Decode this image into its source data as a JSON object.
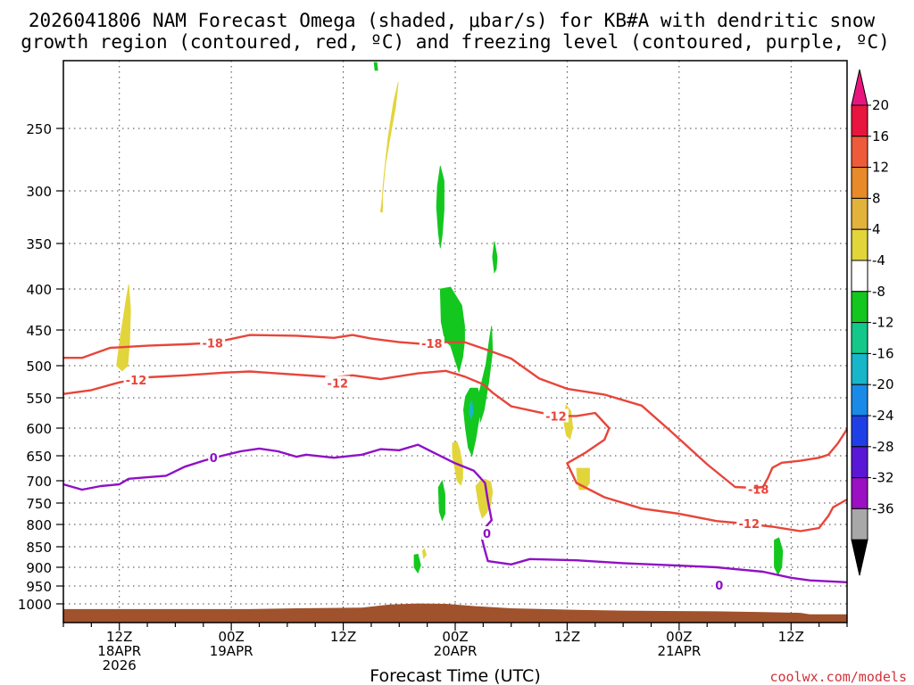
{
  "chart_data": {
    "type": "heatmap",
    "title_lines": [
      "2026041806 NAM Forecast Omega (shaded, μbar/s) for KB#A with dendritic snow",
      "growth region (contoured, red, ºC) and freezing level (contoured, purple, ºC)"
    ],
    "xlabel": "Forecast Time (UTC)",
    "ylabel": "",
    "x_unit": "hours since 2026041806",
    "xlim": [
      0,
      84
    ],
    "ylim": [
      1025,
      200
    ],
    "y_ticks": [
      250,
      300,
      350,
      400,
      450,
      500,
      550,
      600,
      650,
      700,
      750,
      800,
      850,
      900,
      950,
      1000
    ],
    "x_ticks": [
      {
        "x": 6,
        "lines": [
          "12Z",
          "18APR",
          "2026"
        ]
      },
      {
        "x": 18,
        "lines": [
          "00Z",
          "19APR"
        ]
      },
      {
        "x": 30,
        "lines": [
          "12Z"
        ]
      },
      {
        "x": 42,
        "lines": [
          "00Z",
          "20APR"
        ]
      },
      {
        "x": 54,
        "lines": [
          "12Z"
        ]
      },
      {
        "x": 66,
        "lines": [
          "00Z",
          "21APR"
        ]
      },
      {
        "x": 78,
        "lines": [
          "12Z"
        ]
      }
    ],
    "grid": true,
    "colorbar": {
      "labels": [
        "20",
        "16",
        "12",
        "8",
        "4",
        "-4",
        "-8",
        "-12",
        "-16",
        "-20",
        "-24",
        "-28",
        "-32",
        "-36"
      ],
      "colors": [
        "#e8153f",
        "#ee5b3b",
        "#e88a2a",
        "#e3b23b",
        "#e2d53b",
        "#ffffff",
        "#13c71f",
        "#14c88a",
        "#18b6c9",
        "#1a8ae8",
        "#1f3fe6",
        "#5a18d6",
        "#9a10c2",
        "#a8a8a8"
      ],
      "top_color": "#e8157f",
      "bottom_color": "#000000"
    },
    "contours": [
      {
        "name": "-18",
        "color": "#e8453a",
        "labels": [
          {
            "x": 16.0,
            "y": 468
          },
          {
            "x": 39.5,
            "y": 469
          },
          {
            "x": 74.5,
            "y": 719
          }
        ],
        "points": [
          [
            0,
            489
          ],
          [
            2,
            489
          ],
          [
            5,
            475
          ],
          [
            9,
            472
          ],
          [
            13,
            470
          ],
          [
            16,
            468
          ],
          [
            20,
            457
          ],
          [
            25,
            458
          ],
          [
            29,
            461
          ],
          [
            31,
            457
          ],
          [
            33,
            462
          ],
          [
            36,
            467
          ],
          [
            39,
            470
          ],
          [
            41,
            467
          ],
          [
            43,
            467
          ],
          [
            45,
            476
          ],
          [
            48,
            490
          ],
          [
            51,
            520
          ],
          [
            54,
            536
          ],
          [
            58,
            545
          ],
          [
            62,
            563
          ],
          [
            65,
            604
          ],
          [
            69,
            667
          ],
          [
            72,
            714
          ],
          [
            74,
            716
          ],
          [
            75,
            718
          ]
        ]
      },
      {
        "name": "-18 (right)",
        "color": "#e8453a",
        "labels": [],
        "points": [
          [
            74,
            716
          ],
          [
            75,
            714
          ],
          [
            75.5,
            695
          ],
          [
            76,
            674
          ],
          [
            77,
            664
          ],
          [
            79,
            660
          ],
          [
            81,
            654
          ],
          [
            82,
            648
          ],
          [
            83,
            628
          ],
          [
            84,
            602
          ]
        ]
      },
      {
        "name": "-12",
        "color": "#e8453a",
        "labels": [
          {
            "x": 7.8,
            "y": 522
          },
          {
            "x": 29.4,
            "y": 527
          },
          {
            "x": 52.8,
            "y": 580
          },
          {
            "x": 73.5,
            "y": 798
          }
        ],
        "points": [
          [
            0,
            544
          ],
          [
            3,
            538
          ],
          [
            6,
            526
          ],
          [
            9,
            518
          ],
          [
            13,
            515
          ],
          [
            17,
            511
          ],
          [
            20,
            509
          ],
          [
            22,
            511
          ],
          [
            27,
            516
          ],
          [
            29,
            518
          ],
          [
            31,
            515
          ],
          [
            34,
            521
          ],
          [
            38,
            512
          ],
          [
            41,
            508
          ],
          [
            43,
            517
          ],
          [
            45,
            529
          ],
          [
            46,
            542
          ],
          [
            48,
            564
          ],
          [
            51,
            574
          ],
          [
            53,
            580
          ],
          [
            55,
            580
          ],
          [
            57,
            575
          ],
          [
            58.5,
            600
          ],
          [
            58,
            621
          ],
          [
            56,
            644
          ],
          [
            54,
            665
          ],
          [
            55,
            705
          ],
          [
            58,
            737
          ],
          [
            62,
            763
          ],
          [
            66,
            775
          ],
          [
            70,
            792
          ],
          [
            73,
            798
          ],
          [
            76,
            805
          ],
          [
            79,
            815
          ],
          [
            81,
            808
          ],
          [
            82,
            780
          ],
          [
            82.5,
            760
          ],
          [
            84,
            742
          ]
        ]
      },
      {
        "name": "0",
        "color": "#8f10c6",
        "labels": [
          {
            "x": 16.1,
            "y": 654
          },
          {
            "x": 45.4,
            "y": 820
          },
          {
            "x": 70.3,
            "y": 948
          }
        ],
        "points": [
          [
            0,
            708
          ],
          [
            2,
            720
          ],
          [
            4,
            712
          ],
          [
            6,
            708
          ],
          [
            7,
            696
          ],
          [
            9,
            693
          ],
          [
            11,
            690
          ],
          [
            13,
            672
          ],
          [
            15,
            660
          ],
          [
            17,
            650
          ],
          [
            19,
            642
          ],
          [
            21,
            637
          ],
          [
            23,
            642
          ],
          [
            25,
            652
          ],
          [
            26,
            648
          ],
          [
            29,
            654
          ],
          [
            32,
            648
          ],
          [
            34,
            638
          ],
          [
            36,
            640
          ],
          [
            38,
            630
          ],
          [
            40,
            647
          ],
          [
            42,
            665
          ],
          [
            44,
            680
          ],
          [
            45.2,
            705
          ],
          [
            45.5,
            745
          ],
          [
            45.9,
            790
          ],
          [
            45,
            812
          ],
          [
            44.9,
            835
          ],
          [
            45.2,
            860
          ],
          [
            45.5,
            885
          ],
          [
            48,
            893
          ],
          [
            50,
            880
          ],
          [
            55,
            883
          ],
          [
            60,
            890
          ],
          [
            65,
            895
          ],
          [
            70,
            900
          ],
          [
            72,
            905
          ],
          [
            75,
            912
          ],
          [
            78,
            928
          ],
          [
            80,
            935
          ],
          [
            84,
            940
          ]
        ]
      }
    ],
    "omega_patches": [
      {
        "value": -6,
        "color": "#13c71f",
        "points": [
          [
            33.3,
            190
          ],
          [
            33.6,
            190
          ],
          [
            33.7,
            206
          ],
          [
            33.4,
            206
          ]
        ]
      },
      {
        "value": 6,
        "color": "#e2d53b",
        "points": [
          [
            34.0,
            320
          ],
          [
            34.2,
            305
          ],
          [
            34.5,
            280
          ],
          [
            35.0,
            258
          ],
          [
            35.6,
            234
          ],
          [
            35.9,
            215
          ],
          [
            35.4,
            230
          ],
          [
            34.8,
            258
          ],
          [
            34.4,
            285
          ],
          [
            34.2,
            302
          ],
          [
            34.2,
            320
          ]
        ]
      },
      {
        "value": -6,
        "color": "#13c71f",
        "points": [
          [
            40.1,
            296
          ],
          [
            40.4,
            280
          ],
          [
            40.8,
            292
          ],
          [
            40.8,
            318
          ],
          [
            40.6,
            342
          ],
          [
            40.4,
            355
          ],
          [
            40.2,
            340
          ],
          [
            40.0,
            315
          ]
        ]
      },
      {
        "value": -6,
        "color": "#13c71f",
        "points": [
          [
            46.0,
            365
          ],
          [
            46.2,
            348
          ],
          [
            46.5,
            365
          ],
          [
            46.4,
            378
          ],
          [
            46.2,
            382
          ]
        ]
      },
      {
        "value": 6,
        "color": "#e2d53b",
        "points": [
          [
            5.7,
            500
          ],
          [
            6.1,
            460
          ],
          [
            6.7,
            415
          ],
          [
            7.0,
            395
          ],
          [
            7.2,
            425
          ],
          [
            7.1,
            468
          ],
          [
            6.9,
            500
          ],
          [
            6.3,
            508
          ]
        ]
      },
      {
        "value": -7,
        "color": "#13c71f",
        "points": [
          [
            40.4,
            400
          ],
          [
            41.5,
            398
          ],
          [
            42.7,
            420
          ],
          [
            43.0,
            445
          ],
          [
            43.0,
            465
          ],
          [
            42.8,
            488
          ],
          [
            42.4,
            510
          ],
          [
            42.0,
            493
          ],
          [
            41.5,
            472
          ],
          [
            40.9,
            465
          ],
          [
            40.5,
            440
          ]
        ]
      },
      {
        "value": -7,
        "color": "#13c71f",
        "points": [
          [
            43.1,
            548
          ],
          [
            43.6,
            535
          ],
          [
            44.4,
            535
          ],
          [
            44.8,
            555
          ],
          [
            44.6,
            580
          ],
          [
            44.2,
            620
          ],
          [
            43.8,
            650
          ],
          [
            43.4,
            635
          ],
          [
            43.1,
            600
          ],
          [
            42.9,
            570
          ]
        ]
      },
      {
        "value": -8,
        "color": "#13c71f",
        "points": [
          [
            44.6,
            540
          ],
          [
            45.3,
            498
          ],
          [
            45.7,
            460
          ],
          [
            45.9,
            445
          ],
          [
            46.0,
            480
          ],
          [
            45.6,
            525
          ],
          [
            45.1,
            570
          ],
          [
            44.7,
            590
          ],
          [
            44.6,
            560
          ]
        ]
      },
      {
        "value": -14,
        "color": "#18b6c9",
        "points": [
          [
            43.6,
            560
          ],
          [
            43.8,
            555
          ],
          [
            43.9,
            575
          ],
          [
            43.7,
            585
          ],
          [
            43.5,
            575
          ]
        ]
      },
      {
        "value": 6,
        "color": "#e2d53b",
        "points": [
          [
            53.6,
            580
          ],
          [
            53.9,
            562
          ],
          [
            54.4,
            572
          ],
          [
            54.6,
            600
          ],
          [
            54.3,
            620
          ],
          [
            53.9,
            612
          ],
          [
            53.7,
            595
          ]
        ]
      },
      {
        "value": 6,
        "color": "#e2d53b",
        "points": [
          [
            55.0,
            675
          ],
          [
            56.4,
            675
          ],
          [
            56.4,
            705
          ],
          [
            55.9,
            720
          ],
          [
            55.3,
            720
          ],
          [
            55.1,
            700
          ]
        ]
      },
      {
        "value": 6,
        "color": "#e2d53b",
        "points": [
          [
            41.7,
            627
          ],
          [
            42.2,
            625
          ],
          [
            42.5,
            640
          ],
          [
            42.8,
            670
          ],
          [
            42.8,
            695
          ],
          [
            42.6,
            710
          ],
          [
            42.2,
            700
          ],
          [
            41.9,
            670
          ],
          [
            41.7,
            650
          ]
        ]
      },
      {
        "value": 6,
        "color": "#e2d53b",
        "points": [
          [
            44.2,
            712
          ],
          [
            44.7,
            700
          ],
          [
            45.2,
            697
          ],
          [
            45.8,
            702
          ],
          [
            46.0,
            725
          ],
          [
            45.8,
            755
          ],
          [
            45.3,
            775
          ],
          [
            44.9,
            785
          ],
          [
            44.6,
            765
          ],
          [
            44.4,
            740
          ]
        ]
      },
      {
        "value": -6,
        "color": "#13c71f",
        "points": [
          [
            40.2,
            715
          ],
          [
            40.6,
            700
          ],
          [
            40.9,
            730
          ],
          [
            40.9,
            775
          ],
          [
            40.6,
            790
          ],
          [
            40.3,
            770
          ]
        ]
      },
      {
        "value": -6,
        "color": "#13c71f",
        "points": [
          [
            37.6,
            870
          ],
          [
            38.0,
            868
          ],
          [
            38.3,
            895
          ],
          [
            38.0,
            915
          ],
          [
            37.6,
            900
          ]
        ]
      },
      {
        "value": 6,
        "color": "#e2d53b",
        "points": [
          [
            38.5,
            860
          ],
          [
            38.7,
            855
          ],
          [
            38.9,
            870
          ],
          [
            38.6,
            878
          ]
        ]
      },
      {
        "value": -6,
        "color": "#13c71f",
        "points": [
          [
            76.2,
            835
          ],
          [
            76.7,
            830
          ],
          [
            77.1,
            860
          ],
          [
            77.0,
            900
          ],
          [
            76.6,
            920
          ],
          [
            76.2,
            900
          ]
        ]
      }
    ],
    "terrain": {
      "color": "#a0522d",
      "points": [
        [
          0,
          1007
        ],
        [
          10,
          1007
        ],
        [
          20,
          1007
        ],
        [
          25,
          1006
        ],
        [
          32,
          1005
        ],
        [
          35,
          1001
        ],
        [
          38,
          999
        ],
        [
          41,
          1000
        ],
        [
          44,
          1003
        ],
        [
          48,
          1006
        ],
        [
          55,
          1008
        ],
        [
          60,
          1009
        ],
        [
          70,
          1010
        ],
        [
          75,
          1011
        ],
        [
          79,
          1012
        ],
        [
          80,
          1014
        ],
        [
          84,
          1014
        ]
      ]
    }
  },
  "credit": "coolwx.com/models"
}
